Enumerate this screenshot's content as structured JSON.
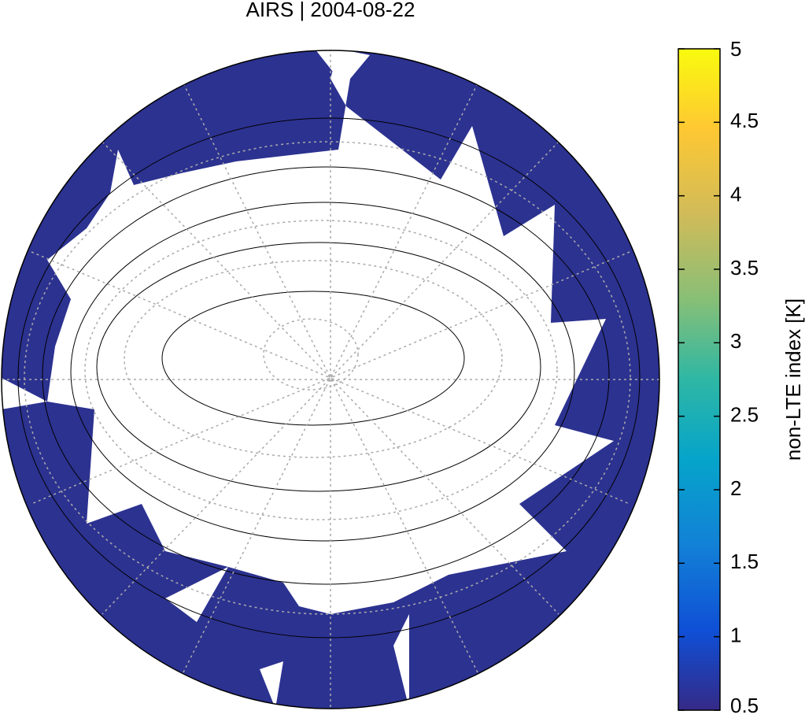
{
  "chart_data": {
    "type": "map",
    "title": "AIRS | 2004-08-22",
    "colorbar": {
      "label": "non-LTE index [K]",
      "lim": [
        0.5,
        5
      ],
      "ticks": [
        0.5,
        1,
        1.5,
        2,
        2.5,
        3,
        3.5,
        4,
        4.5,
        5
      ]
    }
  }
}
